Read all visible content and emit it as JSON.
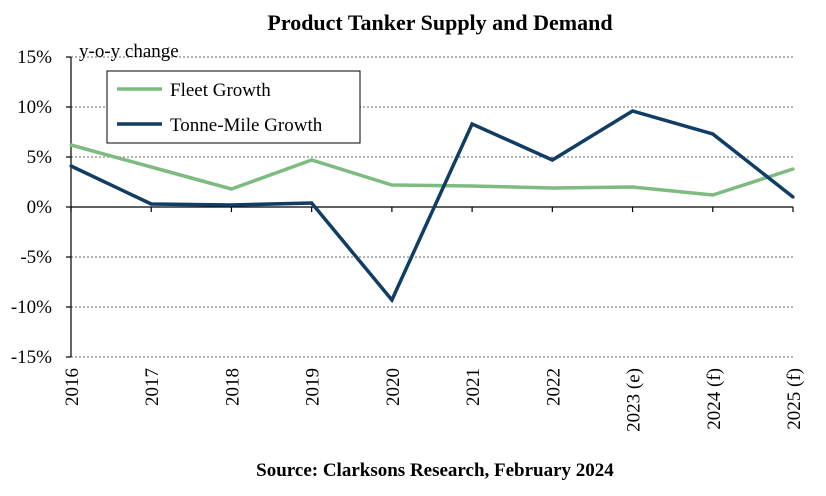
{
  "chart_data": {
    "type": "line",
    "title": "Product Tanker Supply and Demand",
    "source": "Source: Clarksons Research, February 2024",
    "ylabel": "y-o-y change",
    "xlabel": "",
    "categories": [
      "2016",
      "2017",
      "2018",
      "2019",
      "2020",
      "2021",
      "2022",
      "2023 (e)",
      "2024 (f)",
      "2025 (f)"
    ],
    "yticks": [
      15,
      10,
      5,
      0,
      -5,
      -10,
      -15
    ],
    "ytick_labels": [
      "15%",
      "10%",
      "5%",
      "0%",
      "-5%",
      "-10%",
      "-15%"
    ],
    "ylim": [
      -15,
      15
    ],
    "grid": true,
    "legend_position": "top-left",
    "series": [
      {
        "name": "Fleet Growth",
        "color": "#7dbb80",
        "values": [
          6.2,
          4.0,
          1.8,
          4.7,
          2.2,
          2.1,
          1.9,
          2.0,
          1.2,
          3.8
        ]
      },
      {
        "name": "Tonne-Mile Growth",
        "color": "#0f3d63",
        "values": [
          4.1,
          0.3,
          0.2,
          0.4,
          -9.3,
          8.3,
          4.7,
          9.6,
          7.3,
          1.0
        ]
      }
    ]
  }
}
